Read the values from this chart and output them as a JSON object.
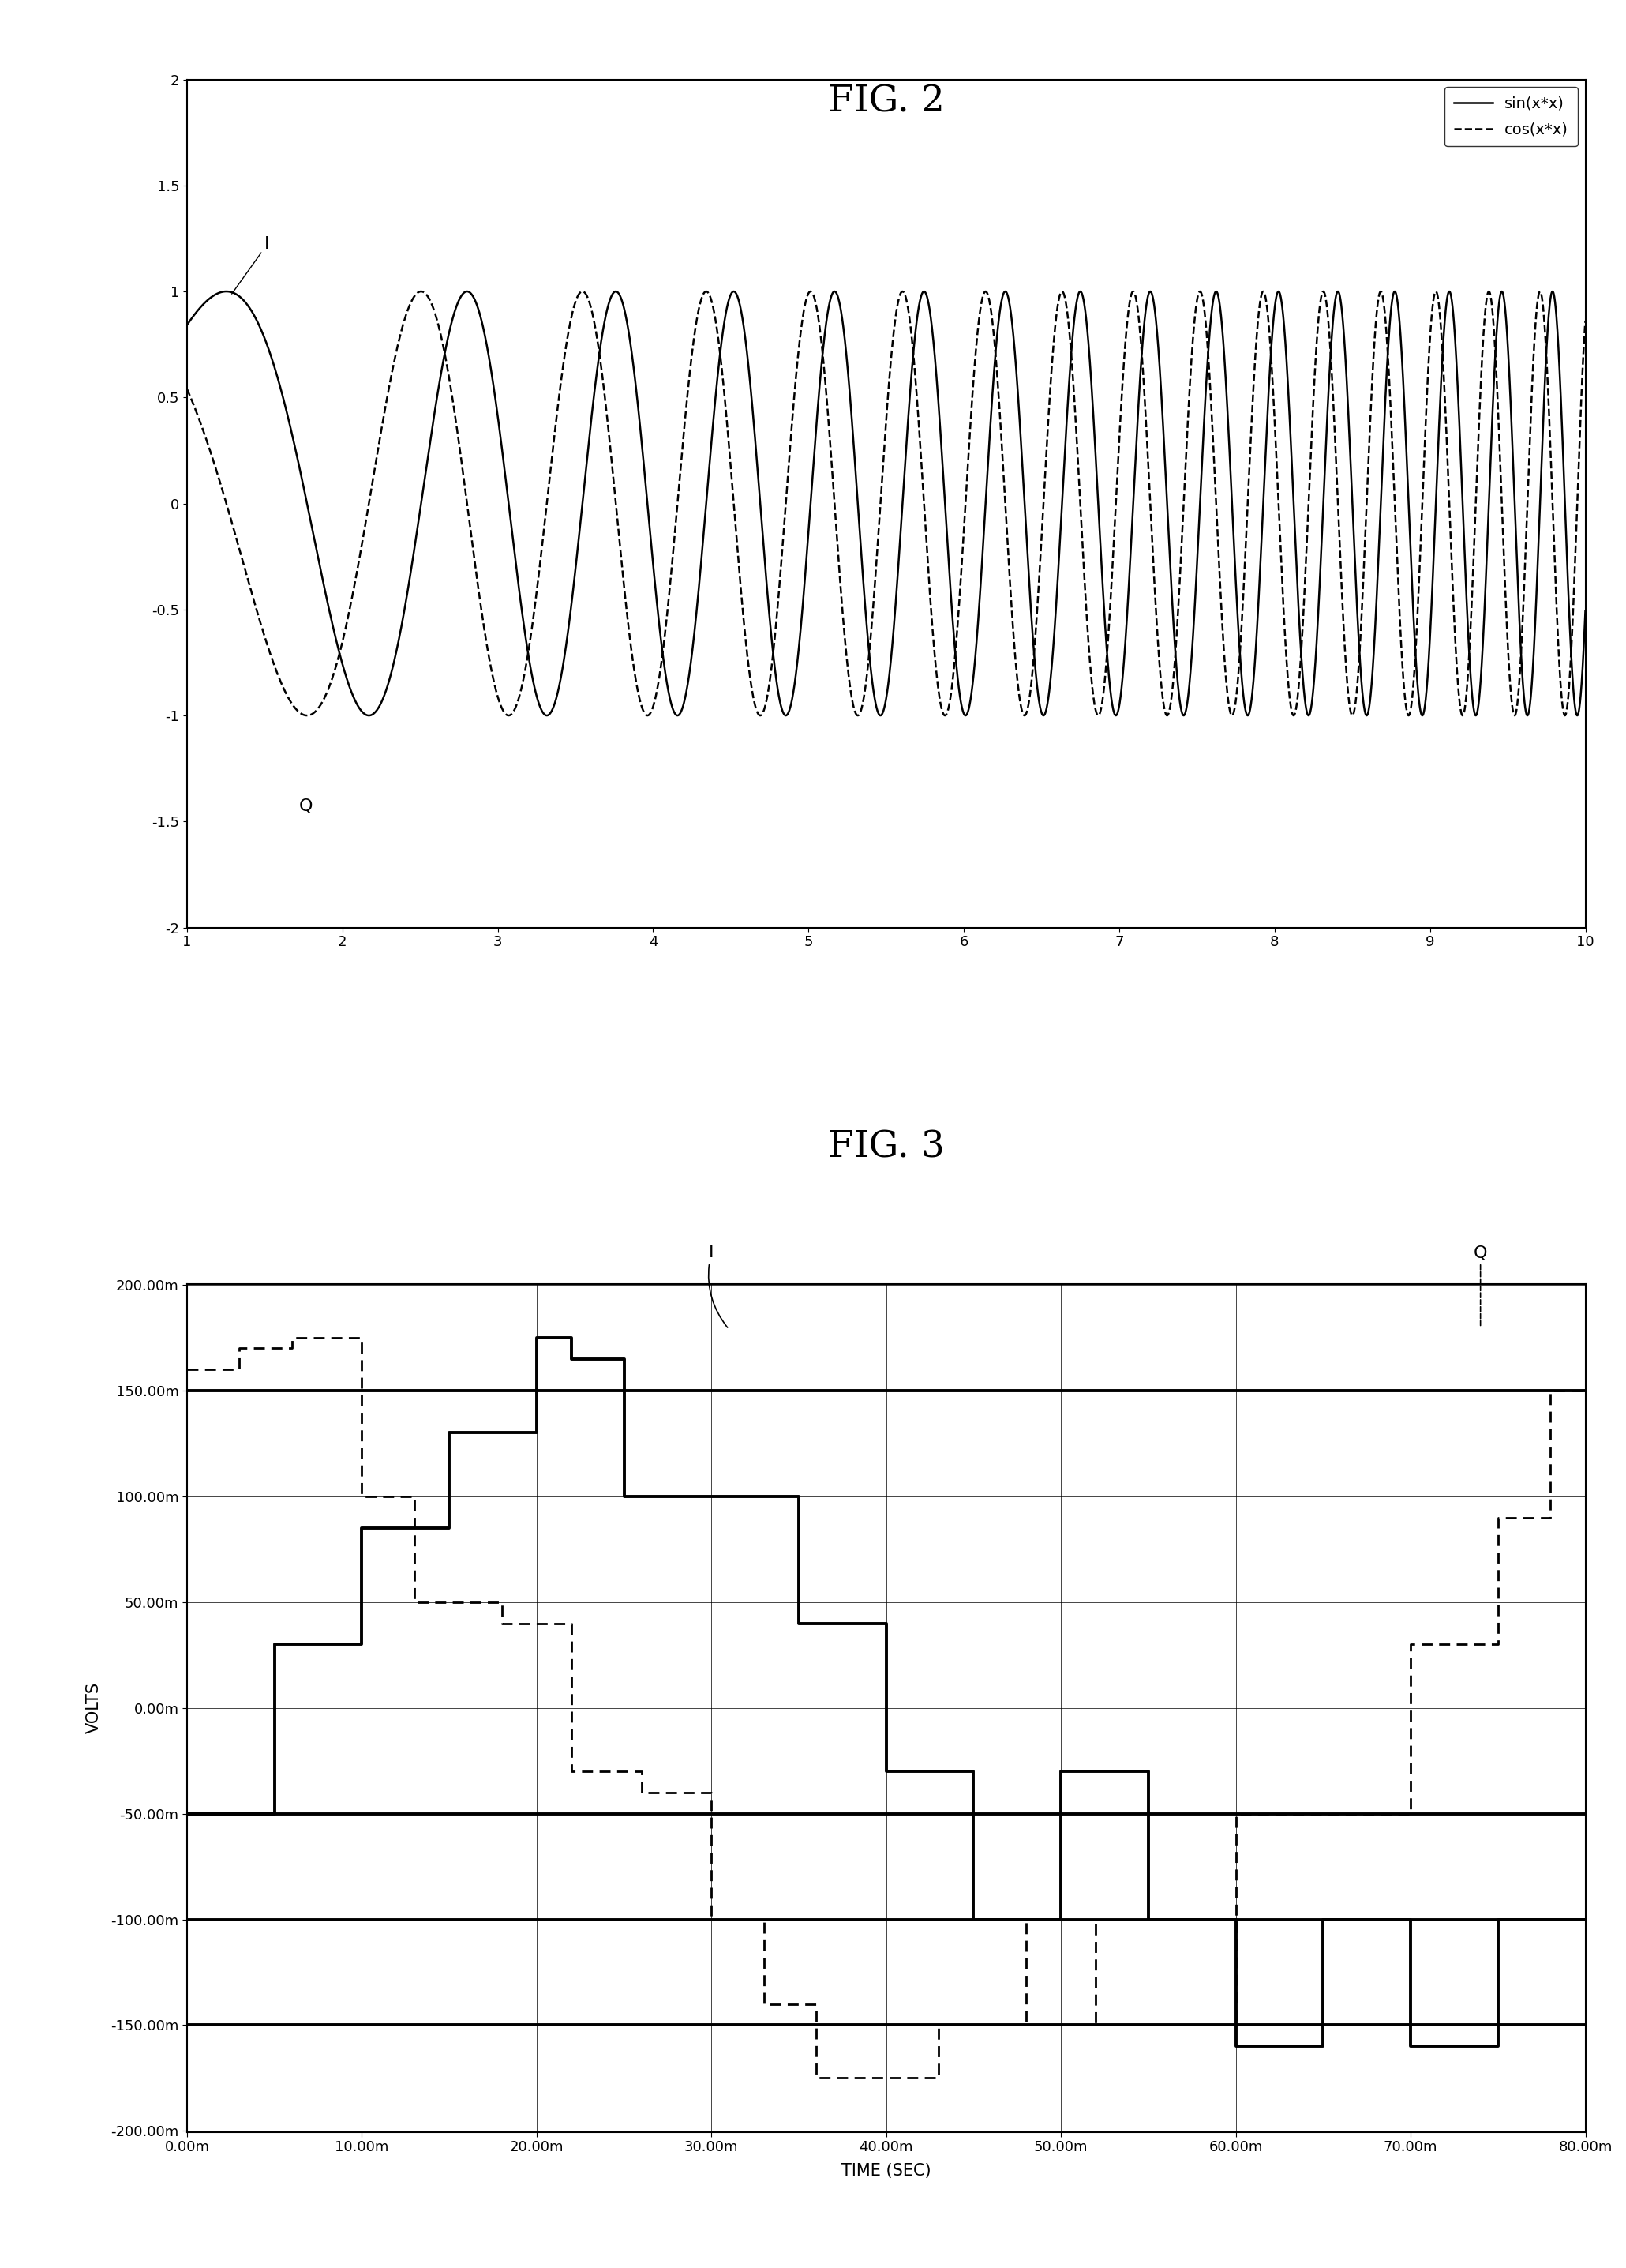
{
  "fig2_title": "FIG. 2",
  "fig3_title": "FIG. 3",
  "fig2_xlim": [
    1,
    10
  ],
  "fig2_ylim": [
    -2,
    2
  ],
  "fig2_xticks": [
    1,
    2,
    3,
    4,
    5,
    6,
    7,
    8,
    9,
    10
  ],
  "fig2_yticks": [
    -2.0,
    -1.5,
    -1.0,
    -0.5,
    0.0,
    0.5,
    1.0,
    1.5,
    2.0
  ],
  "fig2_ytick_labels": [
    "-2",
    "-1.5",
    "-1",
    "-0.5",
    "0",
    "0.5",
    "1",
    "1.5",
    "2"
  ],
  "fig2_legend_sin": "sin(x*x)",
  "fig2_legend_cos": "cos(x*x)",
  "fig2_I_label": "I",
  "fig2_Q_label": "Q",
  "fig3_xlim": [
    0.0,
    0.08
  ],
  "fig3_ylim": [
    -0.2005,
    0.2005
  ],
  "fig3_xtick_vals": [
    0.0,
    0.01,
    0.02,
    0.03,
    0.04,
    0.05,
    0.06,
    0.07,
    0.08
  ],
  "fig3_xtick_labels": [
    "0.00m",
    "10.00m",
    "20.00m",
    "30.00m",
    "40.00m",
    "50.00m",
    "60.00m",
    "70.00m",
    "80.00m"
  ],
  "fig3_ytick_vals": [
    -0.2,
    -0.15,
    -0.1,
    -0.05,
    0.0,
    0.05,
    0.1,
    0.15,
    0.2
  ],
  "fig3_ytick_labels": [
    "-200.00m",
    "-150.00m",
    "-100.00m",
    "-50.00m",
    "0.00m",
    "50.00m",
    "100.00m",
    "150.00m",
    "200.00m"
  ],
  "fig3_xlabel": "TIME (SEC)",
  "fig3_ylabel": "VOLTS",
  "fig3_I_label": "I",
  "fig3_Q_label": "Q",
  "fig3_ref_lines": [
    -0.15,
    -0.1,
    -0.05,
    0.15
  ],
  "I_step_times": [
    0.0,
    0.005,
    0.01,
    0.015,
    0.02,
    0.022,
    0.025,
    0.03,
    0.035,
    0.04,
    0.045,
    0.05,
    0.055,
    0.06,
    0.065,
    0.07,
    0.075,
    0.08
  ],
  "I_step_vals": [
    -0.05,
    0.03,
    0.085,
    0.13,
    0.175,
    0.165,
    0.1,
    0.1,
    0.04,
    -0.03,
    -0.1,
    -0.03,
    -0.1,
    -0.16,
    -0.1,
    -0.16,
    -0.1,
    -0.1
  ],
  "Q_step_times": [
    0.0,
    0.003,
    0.006,
    0.01,
    0.013,
    0.018,
    0.022,
    0.026,
    0.03,
    0.033,
    0.036,
    0.04,
    0.043,
    0.048,
    0.052,
    0.056,
    0.06,
    0.065,
    0.07,
    0.075,
    0.078,
    0.08
  ],
  "Q_step_vals": [
    0.16,
    0.17,
    0.175,
    0.1,
    0.05,
    0.04,
    -0.03,
    -0.04,
    -0.1,
    -0.14,
    -0.175,
    -0.175,
    -0.15,
    -0.1,
    -0.15,
    -0.15,
    -0.05,
    -0.05,
    0.03,
    0.09,
    0.15,
    0.0
  ],
  "background_color": "#ffffff",
  "title_fontsize": 34,
  "tick_fontsize": 13,
  "label_fontsize": 15,
  "annot_fontsize": 16
}
